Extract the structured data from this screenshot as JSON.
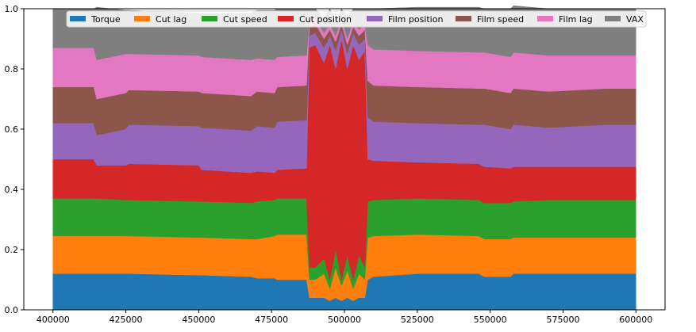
{
  "chart_data": {
    "type": "area",
    "stacked": true,
    "normalized": true,
    "title": "",
    "xlabel": "",
    "ylabel": "",
    "xlim": [
      390000,
      610000
    ],
    "ylim": [
      0,
      1.0
    ],
    "x_ticks": [
      400000,
      425000,
      450000,
      475000,
      500000,
      525000,
      550000,
      575000,
      600000
    ],
    "x_tick_labels": [
      "400000",
      "425000",
      "450000",
      "475000",
      "500000",
      "525000",
      "550000",
      "575000",
      "600000"
    ],
    "y_ticks": [
      0,
      0.2,
      0.4,
      0.6,
      0.8,
      1.0
    ],
    "y_tick_labels": [
      "0.0",
      "0.2",
      "0.4",
      "0.6",
      "0.8",
      "1.0"
    ],
    "grid": false,
    "legend_placement": "top-center",
    "x": [
      400000,
      414000,
      415000,
      425000,
      426000,
      450000,
      451000,
      468000,
      470000,
      476000,
      477000,
      487000,
      488000,
      490000,
      493000,
      495000,
      497000,
      499000,
      501000,
      503000,
      505000,
      507000,
      508000,
      510000,
      525000,
      546000,
      548000,
      557000,
      558000,
      570000,
      590000,
      598000,
      600000
    ],
    "series": [
      {
        "name": "Torque",
        "color": "#1f77b4",
        "values": [
          0.12,
          0.12,
          0.12,
          0.12,
          0.12,
          0.115,
          0.115,
          0.11,
          0.105,
          0.105,
          0.1,
          0.1,
          0.04,
          0.04,
          0.04,
          0.03,
          0.04,
          0.03,
          0.04,
          0.03,
          0.04,
          0.04,
          0.1,
          0.11,
          0.12,
          0.12,
          0.11,
          0.11,
          0.12,
          0.12,
          0.12,
          0.12,
          0.12
        ]
      },
      {
        "name": "Cut lag",
        "color": "#ff7f0e",
        "values": [
          0.125,
          0.125,
          0.125,
          0.125,
          0.125,
          0.125,
          0.125,
          0.125,
          0.13,
          0.14,
          0.15,
          0.15,
          0.06,
          0.06,
          0.08,
          0.04,
          0.1,
          0.05,
          0.09,
          0.04,
          0.08,
          0.06,
          0.14,
          0.135,
          0.13,
          0.125,
          0.125,
          0.125,
          0.12,
          0.12,
          0.12,
          0.12,
          0.12
        ]
      },
      {
        "name": "Cut speed",
        "color": "#2ca02c",
        "values": [
          0.125,
          0.125,
          0.125,
          0.12,
          0.12,
          0.12,
          0.12,
          0.12,
          0.125,
          0.12,
          0.12,
          0.12,
          0.04,
          0.04,
          0.05,
          0.03,
          0.06,
          0.02,
          0.05,
          0.03,
          0.06,
          0.04,
          0.12,
          0.12,
          0.12,
          0.12,
          0.12,
          0.12,
          0.12,
          0.125,
          0.125,
          0.125,
          0.125
        ]
      },
      {
        "name": "Cut position",
        "color": "#d62728",
        "values": [
          0.13,
          0.13,
          0.11,
          0.115,
          0.12,
          0.12,
          0.105,
          0.1,
          0.1,
          0.09,
          0.095,
          0.1,
          0.73,
          0.74,
          0.65,
          0.78,
          0.6,
          0.8,
          0.62,
          0.78,
          0.65,
          0.72,
          0.14,
          0.13,
          0.12,
          0.12,
          0.12,
          0.115,
          0.115,
          0.11,
          0.11,
          0.11,
          0.11
        ]
      },
      {
        "name": "Film position",
        "color": "#9467bd",
        "values": [
          0.12,
          0.12,
          0.1,
          0.12,
          0.13,
          0.13,
          0.14,
          0.14,
          0.15,
          0.15,
          0.16,
          0.16,
          0.04,
          0.04,
          0.05,
          0.03,
          0.06,
          0.03,
          0.05,
          0.04,
          0.05,
          0.04,
          0.14,
          0.13,
          0.13,
          0.13,
          0.14,
          0.13,
          0.14,
          0.13,
          0.14,
          0.14,
          0.14
        ]
      },
      {
        "name": "Film speed",
        "color": "#8c564b",
        "values": [
          0.12,
          0.12,
          0.12,
          0.12,
          0.115,
          0.115,
          0.115,
          0.115,
          0.115,
          0.115,
          0.115,
          0.115,
          0.03,
          0.03,
          0.03,
          0.02,
          0.03,
          0.02,
          0.03,
          0.02,
          0.03,
          0.03,
          0.12,
          0.12,
          0.12,
          0.12,
          0.12,
          0.12,
          0.12,
          0.12,
          0.12,
          0.12,
          0.12
        ]
      },
      {
        "name": "Film lag",
        "color": "#e377c2",
        "values": [
          0.13,
          0.13,
          0.13,
          0.13,
          0.12,
          0.12,
          0.12,
          0.12,
          0.11,
          0.11,
          0.1,
          0.1,
          0.02,
          0.02,
          0.02,
          0.02,
          0.02,
          0.02,
          0.02,
          0.02,
          0.02,
          0.02,
          0.12,
          0.12,
          0.12,
          0.12,
          0.12,
          0.12,
          0.12,
          0.12,
          0.11,
          0.11,
          0.11
        ]
      },
      {
        "name": "VAX",
        "color": "#7f7f7f",
        "values": [
          0.13,
          0.13,
          0.175,
          0.145,
          0.145,
          0.14,
          0.145,
          0.155,
          0.16,
          0.165,
          0.16,
          0.155,
          0.04,
          0.03,
          0.05,
          0.05,
          0.05,
          0.03,
          0.07,
          0.04,
          0.07,
          0.05,
          0.12,
          0.135,
          0.145,
          0.15,
          0.145,
          0.16,
          0.155,
          0.155,
          0.155,
          0.155,
          0.155
        ]
      }
    ]
  }
}
